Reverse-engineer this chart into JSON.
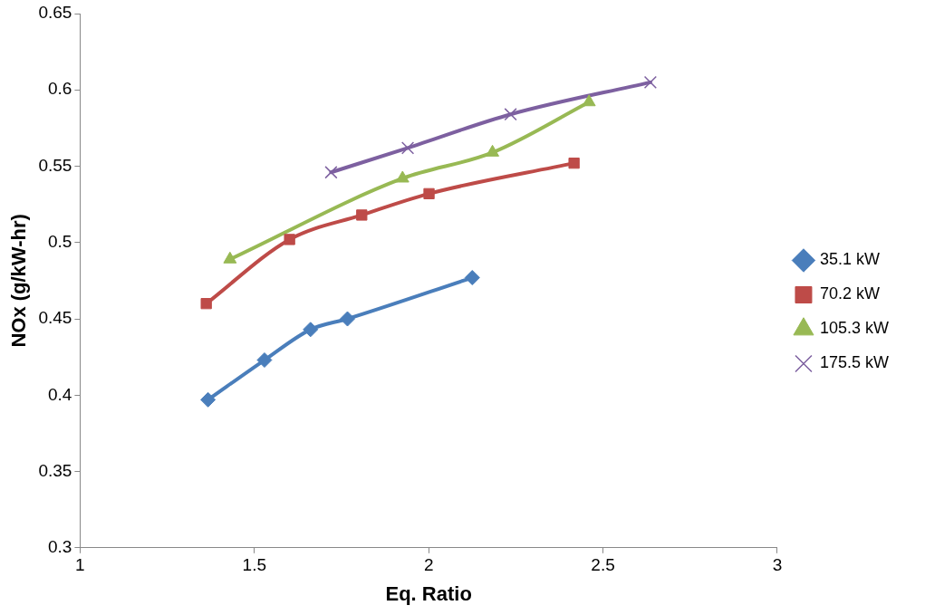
{
  "chart_data": {
    "type": "line",
    "xlabel": "Eq. Ratio",
    "ylabel": "NOx (g/kW-hr)",
    "xlim": [
      1,
      3
    ],
    "xticks": [
      1,
      1.5,
      2,
      2.5,
      3
    ],
    "ylim": [
      0.3,
      0.65
    ],
    "yticks": [
      0.3,
      0.35,
      0.4,
      0.45,
      0.5,
      0.55,
      0.6,
      0.65
    ],
    "grid": false,
    "legend": "right",
    "line_style": "solid",
    "series": [
      {
        "name": "35.1 kW",
        "color": "#4a7ebb",
        "marker": "diamond",
        "x": [
          1.367,
          1.529,
          1.661,
          1.767,
          2.125
        ],
        "values": [
          0.397,
          0.423,
          0.443,
          0.45,
          0.477
        ]
      },
      {
        "name": "70.2 kW",
        "color": "#be4b48",
        "marker": "square",
        "x": [
          1.362,
          1.601,
          1.808,
          2.001,
          2.417
        ],
        "values": [
          0.46,
          0.502,
          0.518,
          0.532,
          0.552
        ]
      },
      {
        "name": "105.3 kW",
        "color": "#98b954",
        "marker": "triangle",
        "x": [
          1.43,
          1.925,
          2.183,
          2.46
        ],
        "values": [
          0.489,
          0.542,
          0.559,
          0.592
        ]
      },
      {
        "name": "175.5 kW",
        "color": "#7d60a0",
        "marker": "cross",
        "x": [
          1.72,
          1.94,
          2.235,
          2.636
        ],
        "values": [
          0.546,
          0.562,
          0.584,
          0.605
        ]
      }
    ]
  }
}
